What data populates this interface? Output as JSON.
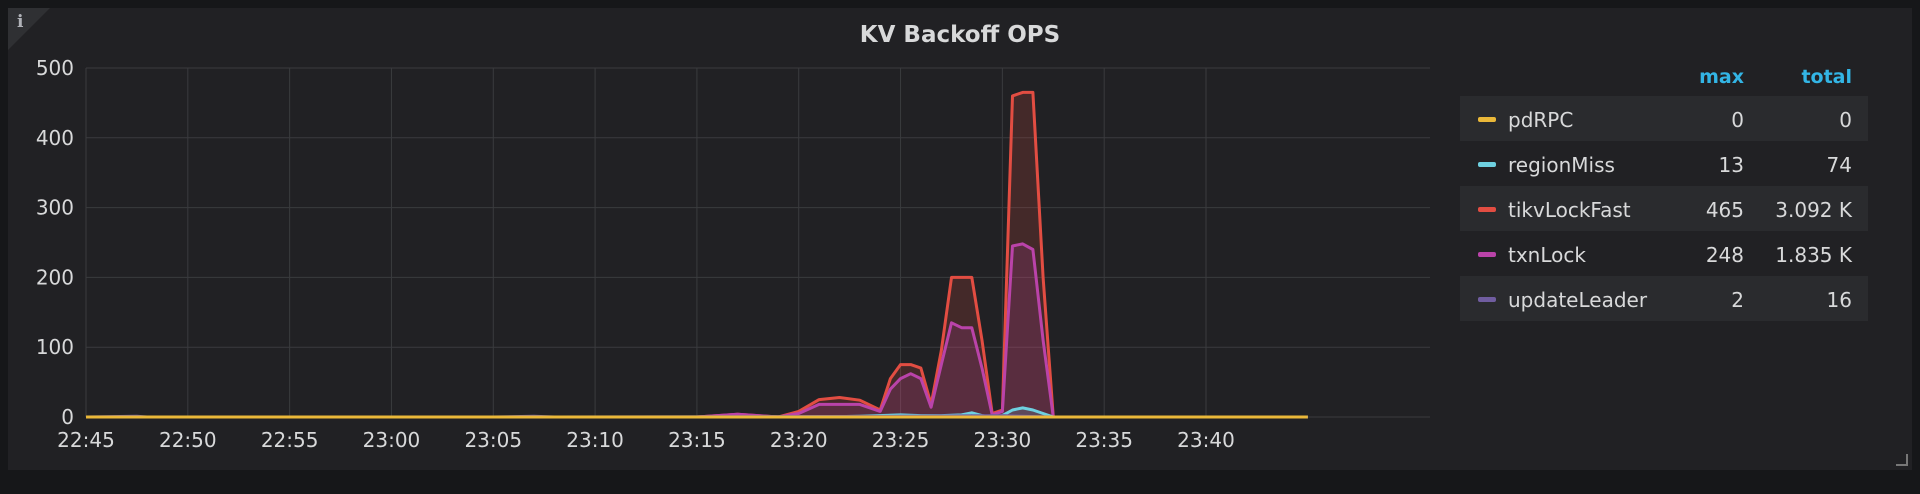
{
  "panel": {
    "title": "KV Backoff OPS",
    "info_icon": "info-icon"
  },
  "legend": {
    "columns": {
      "max": "max",
      "total": "total"
    },
    "rows": [
      {
        "name": "pdRPC",
        "max": "0",
        "total": "0",
        "color": "#eab839"
      },
      {
        "name": "regionMiss",
        "max": "13",
        "total": "74",
        "color": "#6ed0e0"
      },
      {
        "name": "tikvLockFast",
        "max": "465",
        "total": "3.092 K",
        "color": "#e24d42"
      },
      {
        "name": "txnLock",
        "max": "248",
        "total": "1.835 K",
        "color": "#ba43a9"
      },
      {
        "name": "updateLeader",
        "max": "2",
        "total": "16",
        "color": "#705da0"
      }
    ]
  },
  "chart_data": {
    "type": "line",
    "title": "KV Backoff OPS",
    "xlabel": "",
    "ylabel": "",
    "ylim": [
      0,
      500
    ],
    "yticks": [
      0,
      100,
      200,
      300,
      400,
      500
    ],
    "xticks": [
      "22:45",
      "22:50",
      "22:55",
      "23:00",
      "23:05",
      "23:10",
      "23:15",
      "23:20",
      "23:25",
      "23:30",
      "23:35",
      "23:40"
    ],
    "xlim_minutes": [
      0,
      60
    ],
    "grid": true,
    "legend_position": "right",
    "series": [
      {
        "name": "tikvLockFast",
        "color": "#e24d42",
        "fill": true,
        "points": [
          [
            0,
            0
          ],
          [
            16,
            0
          ],
          [
            20,
            0
          ],
          [
            24,
            0
          ],
          [
            26,
            0
          ],
          [
            28,
            0
          ],
          [
            29,
            0
          ],
          [
            30,
            0
          ],
          [
            31,
            2
          ],
          [
            32,
            4
          ],
          [
            33,
            2
          ],
          [
            34,
            0
          ],
          [
            35,
            8
          ],
          [
            36,
            25
          ],
          [
            37,
            28
          ],
          [
            38,
            24
          ],
          [
            39,
            10
          ],
          [
            39.5,
            55
          ],
          [
            40,
            75
          ],
          [
            40.5,
            75
          ],
          [
            41,
            70
          ],
          [
            41.5,
            18
          ],
          [
            42,
            95
          ],
          [
            42.5,
            200
          ],
          [
            43,
            200
          ],
          [
            43.5,
            200
          ],
          [
            44,
            110
          ],
          [
            44.5,
            5
          ],
          [
            45,
            10
          ],
          [
            45.5,
            460
          ],
          [
            46,
            465
          ],
          [
            46.5,
            465
          ],
          [
            47,
            200
          ],
          [
            47.5,
            0
          ],
          [
            60,
            0
          ]
        ]
      },
      {
        "name": "txnLock",
        "color": "#ba43a9",
        "fill": true,
        "points": [
          [
            0,
            0
          ],
          [
            16,
            0
          ],
          [
            20,
            0
          ],
          [
            24,
            0
          ],
          [
            26,
            0
          ],
          [
            28,
            0
          ],
          [
            29,
            0
          ],
          [
            30,
            0
          ],
          [
            31,
            2
          ],
          [
            32,
            4
          ],
          [
            33,
            2
          ],
          [
            34,
            0
          ],
          [
            35,
            5
          ],
          [
            36,
            18
          ],
          [
            37,
            18
          ],
          [
            38,
            18
          ],
          [
            39,
            8
          ],
          [
            39.5,
            40
          ],
          [
            40,
            55
          ],
          [
            40.5,
            62
          ],
          [
            41,
            55
          ],
          [
            41.5,
            14
          ],
          [
            42,
            75
          ],
          [
            42.5,
            135
          ],
          [
            43,
            128
          ],
          [
            43.5,
            128
          ],
          [
            44,
            70
          ],
          [
            44.5,
            3
          ],
          [
            45,
            8
          ],
          [
            45.5,
            245
          ],
          [
            46,
            248
          ],
          [
            46.5,
            240
          ],
          [
            47,
            110
          ],
          [
            47.5,
            0
          ],
          [
            60,
            0
          ]
        ]
      },
      {
        "name": "regionMiss",
        "color": "#6ed0e0",
        "fill": true,
        "points": [
          [
            0,
            0
          ],
          [
            36,
            0
          ],
          [
            38,
            1
          ],
          [
            40,
            3
          ],
          [
            41,
            2
          ],
          [
            42,
            2
          ],
          [
            43,
            3
          ],
          [
            43.5,
            6
          ],
          [
            44,
            2
          ],
          [
            44.5,
            0
          ],
          [
            45,
            2
          ],
          [
            45.5,
            10
          ],
          [
            46,
            13
          ],
          [
            46.5,
            10
          ],
          [
            47,
            5
          ],
          [
            47.5,
            0
          ],
          [
            60,
            0
          ]
        ]
      },
      {
        "name": "updateLeader",
        "color": "#705da0",
        "fill": false,
        "points": [
          [
            0,
            0
          ],
          [
            2.5,
            1
          ],
          [
            3,
            0
          ],
          [
            20,
            0
          ],
          [
            22,
            1
          ],
          [
            23,
            0
          ],
          [
            40,
            1
          ],
          [
            45,
            2
          ],
          [
            46,
            1
          ],
          [
            47.5,
            0
          ],
          [
            60,
            0
          ]
        ]
      },
      {
        "name": "pdRPC",
        "color": "#eab839",
        "fill": false,
        "points": [
          [
            0,
            0
          ],
          [
            60,
            0
          ]
        ]
      }
    ]
  }
}
